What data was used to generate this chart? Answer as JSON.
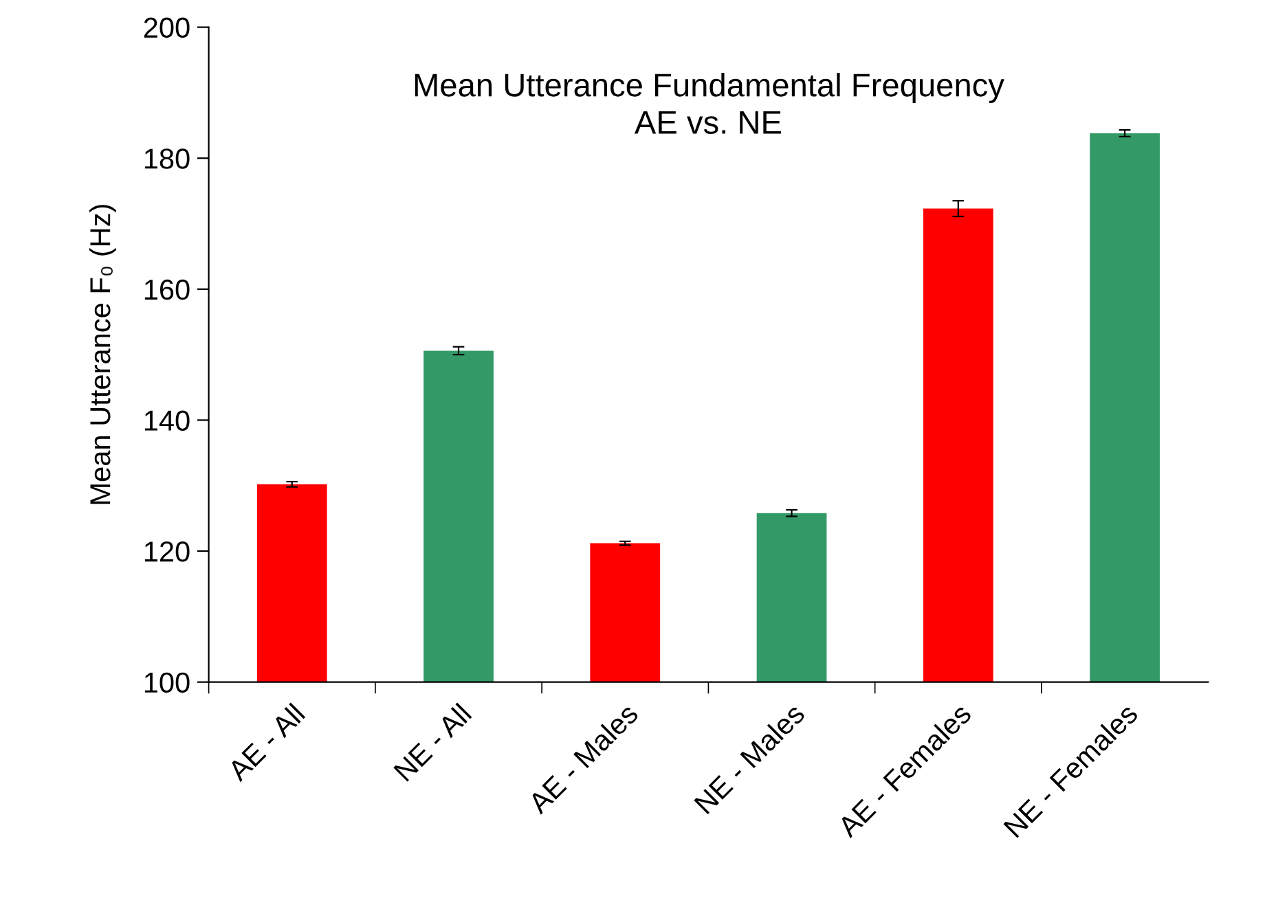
{
  "chart_data": {
    "type": "bar",
    "title": "Mean Utterance Fundamental Frequency\nAE vs. NE",
    "ylabel": "Mean Utterance F₀ (Hz)",
    "categories": [
      "AE - All",
      "NE - All",
      "AE - Males",
      "NE - Males",
      "AE - Females",
      "NE - Females"
    ],
    "values": [
      130.2,
      150.6,
      121.2,
      125.8,
      172.3,
      183.8
    ],
    "errors": [
      0.4,
      0.6,
      0.3,
      0.5,
      1.2,
      0.5
    ],
    "colors": [
      "#ff0000",
      "#339966",
      "#ff0000",
      "#339966",
      "#ff0000",
      "#339966"
    ],
    "ylim": [
      100,
      200
    ],
    "yticks": [
      100,
      120,
      140,
      160,
      180,
      200
    ],
    "grid": false,
    "legend": false
  }
}
